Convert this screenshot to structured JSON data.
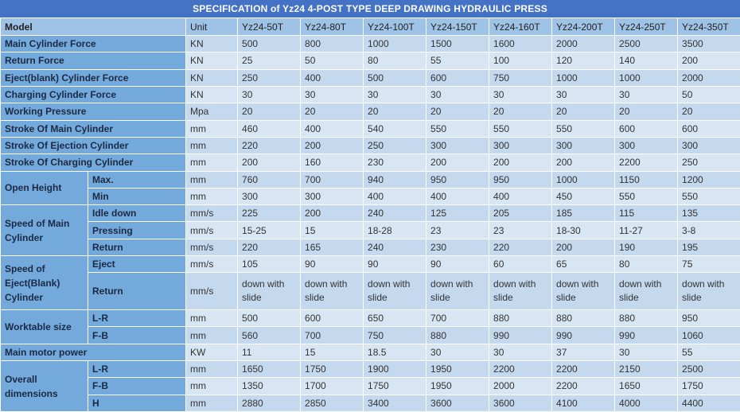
{
  "title": "SPECIFICATION of Yz24 4-POST TYPE DEEP DRAWING HYDRAULIC PRESS",
  "colors": {
    "title_bar": "#4472c4",
    "header_row": "#9fc3e6",
    "label_column": "#74a9db",
    "row_light": "#d8e6f4",
    "row_dark": "#c5d9ee",
    "grid_line": "#ffffff",
    "title_text": "#ffffff"
  },
  "chart_data": {
    "type": "table",
    "title": "SPECIFICATION of Yz24 4-POST TYPE DEEP DRAWING HYDRAULIC PRESS",
    "header": [
      "Model",
      "Unit",
      "Yz24-50T",
      "Yz24-80T",
      "Yz24-100T",
      "Yz24-150T",
      "Yz24-160T",
      "Yz24-200T",
      "Yz24-250T",
      "Yz24-350T"
    ],
    "rows": [
      {
        "label": "Main Cylinder Force",
        "unit": "KN",
        "values": [
          "500",
          "800",
          "1000",
          "1500",
          "1600",
          "2000",
          "2500",
          "3500"
        ]
      },
      {
        "label": "Return Force",
        "unit": "KN",
        "values": [
          "25",
          "50",
          "80",
          "55",
          "100",
          "120",
          "140",
          "200"
        ]
      },
      {
        "label": "Eject(blank) Cylinder Force",
        "unit": "KN",
        "values": [
          "250",
          "400",
          "500",
          "600",
          "750",
          "1000",
          "1000",
          "2000"
        ]
      },
      {
        "label": "Charging Cylinder Force",
        "unit": "KN",
        "values": [
          "30",
          "30",
          "30",
          "30",
          "30",
          "30",
          "30",
          "50"
        ]
      },
      {
        "label": "Working Pressure",
        "unit": "Mpa",
        "values": [
          "20",
          "20",
          "20",
          "20",
          "20",
          "20",
          "20",
          "20"
        ]
      },
      {
        "label": "Stroke Of Main Cylinder",
        "unit": "mm",
        "values": [
          "460",
          "400",
          "540",
          "550",
          "550",
          "550",
          "600",
          "600"
        ]
      },
      {
        "label": "Stroke Of Ejection Cylinder",
        "unit": "mm",
        "values": [
          "220",
          "200",
          "250",
          "300",
          "300",
          "300",
          "300",
          "300"
        ]
      },
      {
        "label": "Stroke Of Charging Cylinder",
        "unit": "mm",
        "values": [
          "200",
          "160",
          "230",
          "200",
          "200",
          "200",
          "2200",
          "250"
        ]
      },
      {
        "label": "Open Height",
        "subrows": [
          {
            "sub": "Max.",
            "unit": "mm",
            "values": [
              "760",
              "700",
              "940",
              "950",
              "950",
              "1000",
              "1150",
              "1200"
            ]
          },
          {
            "sub": "Min",
            "unit": "mm",
            "values": [
              "300",
              "300",
              "400",
              "400",
              "400",
              "450",
              "550",
              "550"
            ]
          }
        ]
      },
      {
        "label": "Speed of Main Cylinder",
        "subrows": [
          {
            "sub": "Idle down",
            "unit": "mm/s",
            "values": [
              "225",
              "200",
              "240",
              "125",
              "205",
              "185",
              "115",
              "135"
            ]
          },
          {
            "sub": "Pressing",
            "unit": "mm/s",
            "values": [
              "15-25",
              "15",
              "18-28",
              "23",
              "23",
              "18-30",
              "11-27",
              "3-8"
            ]
          },
          {
            "sub": "Return",
            "unit": "mm/s",
            "values": [
              "220",
              "165",
              "240",
              "230",
              "220",
              "200",
              "190",
              "195"
            ]
          }
        ]
      },
      {
        "label": "Speed of Eject(Blank) Cylinder",
        "subrows": [
          {
            "sub": "Eject",
            "unit": "mm/s",
            "values": [
              "105",
              "90",
              "90",
              "90",
              "60",
              "65",
              "80",
              "75"
            ]
          },
          {
            "sub": "Return",
            "unit": "mm/s",
            "tall": true,
            "values": [
              "down with slide",
              "down with slide",
              "down with slide",
              "down with slide",
              "down with slide",
              "down with slide",
              "down with slide",
              "down with slide"
            ]
          }
        ]
      },
      {
        "label": "Worktable size",
        "subrows": [
          {
            "sub": "L-R",
            "unit": "mm",
            "values": [
              "500",
              "600",
              "650",
              "700",
              "880",
              "880",
              "880",
              "950"
            ]
          },
          {
            "sub": "F-B",
            "unit": "mm",
            "values": [
              "560",
              "700",
              "750",
              "880",
              "990",
              "990",
              "990",
              "1060"
            ]
          }
        ]
      },
      {
        "label": "Main motor power",
        "unit": "KW",
        "values": [
          "11",
          "15",
          "18.5",
          "30",
          "30",
          "37",
          "30",
          "55"
        ]
      },
      {
        "label": "Overall dimensions",
        "subrows": [
          {
            "sub": "L-R",
            "unit": "mm",
            "values": [
              "1650",
              "1750",
              "1900",
              "1950",
              "2200",
              "2200",
              "2150",
              "2500"
            ]
          },
          {
            "sub": "F-B",
            "unit": "mm",
            "values": [
              "1350",
              "1700",
              "1750",
              "1950",
              "2000",
              "2200",
              "1650",
              "1750"
            ]
          },
          {
            "sub": "H",
            "unit": "mm",
            "values": [
              "2880",
              "2850",
              "3400",
              "3600",
              "3600",
              "4100",
              "4000",
              "4400"
            ]
          }
        ]
      }
    ]
  }
}
